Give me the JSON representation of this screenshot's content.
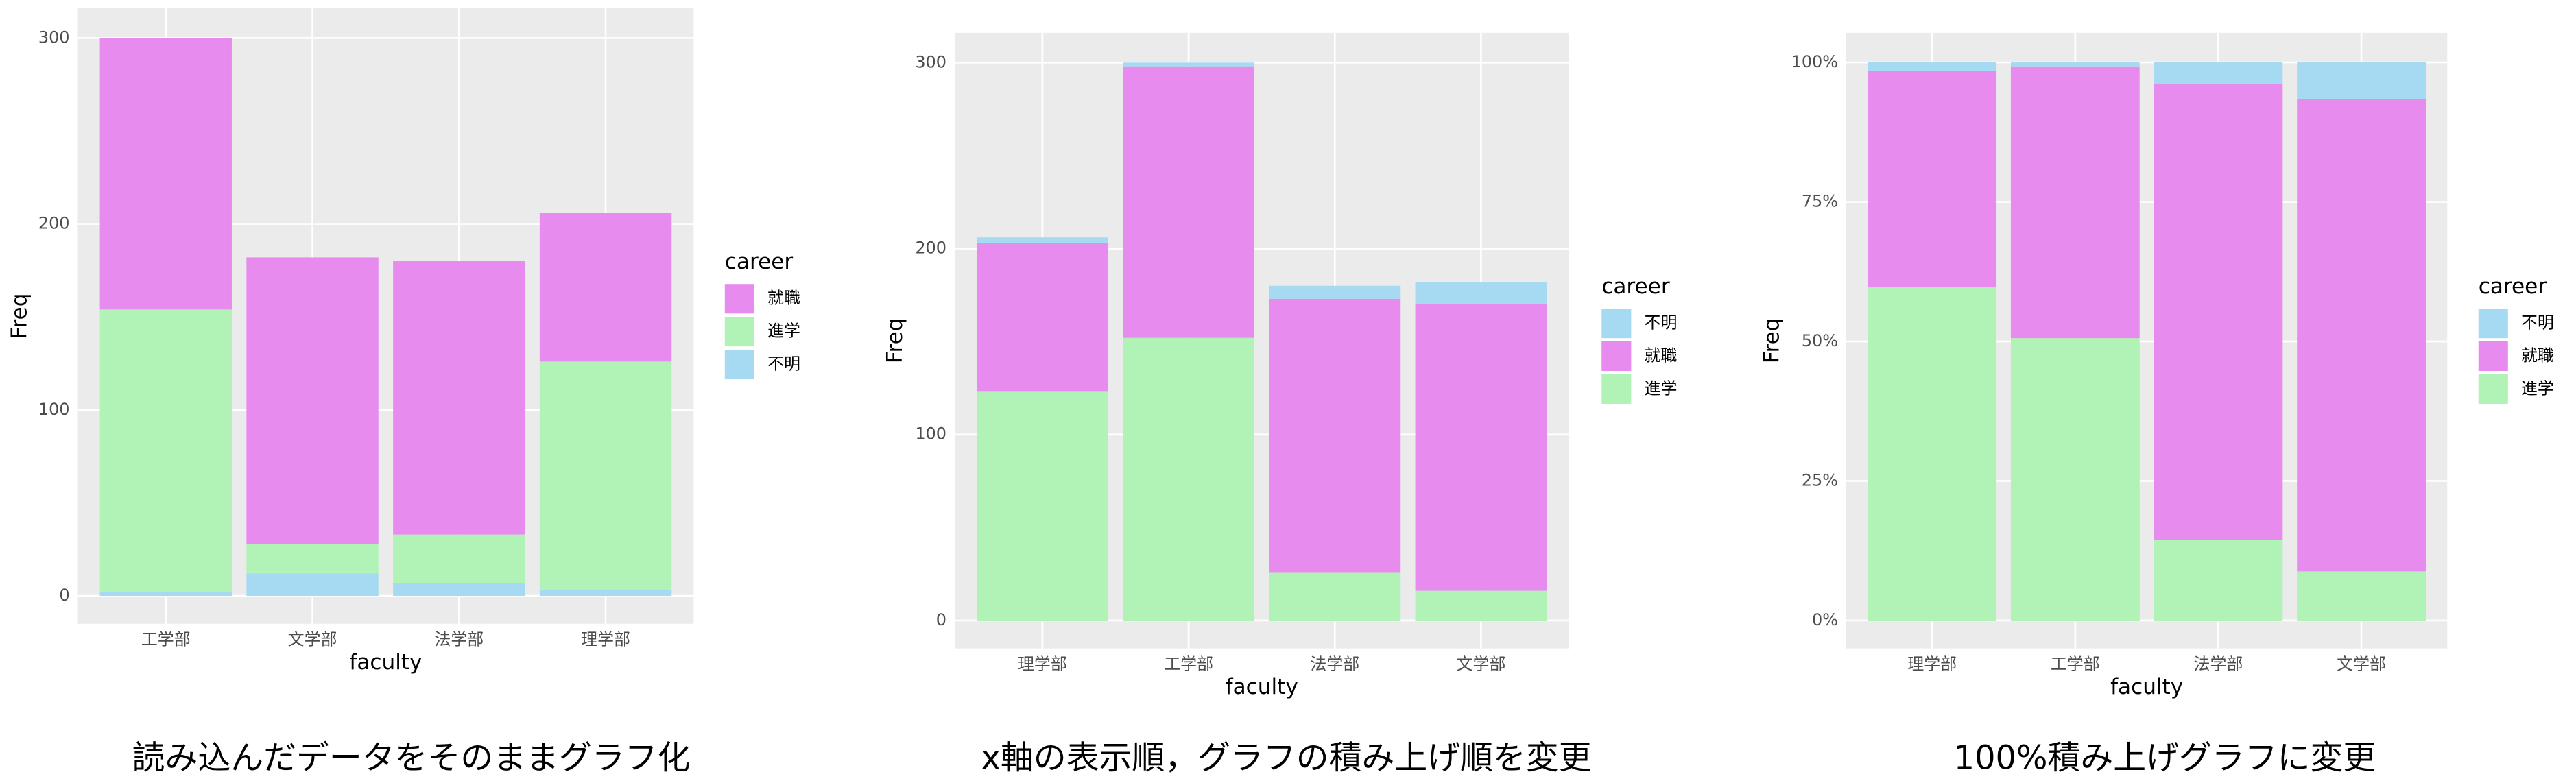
{
  "chart_data": [
    {
      "type": "bar",
      "stacked": true,
      "grid": true,
      "xlabel": "faculty",
      "ylabel": "Freq",
      "legend_title": "career",
      "caption": "読み込んだデータをそのままグラフ化",
      "categories": [
        "工学部",
        "文学部",
        "法学部",
        "理学部"
      ],
      "series": [
        {
          "name": "就職",
          "color": "#e88bef",
          "values": [
            146,
            154,
            147,
            80
          ]
        },
        {
          "name": "進学",
          "color": "#b1f2b6",
          "values": [
            152,
            16,
            26,
            123
          ]
        },
        {
          "name": "不明",
          "color": "#a6d9f2",
          "values": [
            2,
            12,
            7,
            3
          ]
        }
      ],
      "ylim": [
        -15,
        316
      ],
      "yticks": [
        0,
        100,
        200,
        300
      ]
    },
    {
      "type": "bar",
      "stacked": true,
      "grid": true,
      "xlabel": "faculty",
      "ylabel": "Freq",
      "legend_title": "career",
      "caption": "x軸の表示順，グラフの積み上げ順を変更",
      "categories": [
        "理学部",
        "工学部",
        "法学部",
        "文学部"
      ],
      "series": [
        {
          "name": "不明",
          "color": "#a6d9f2",
          "values": [
            3,
            2,
            7,
            12
          ]
        },
        {
          "name": "就職",
          "color": "#e88bef",
          "values": [
            80,
            146,
            147,
            154
          ]
        },
        {
          "name": "進学",
          "color": "#b1f2b6",
          "values": [
            123,
            152,
            26,
            16
          ]
        }
      ],
      "ylim": [
        -15,
        316
      ],
      "yticks": [
        0,
        100,
        200,
        300
      ]
    },
    {
      "type": "bar",
      "stacked": true,
      "grid": true,
      "xlabel": "faculty",
      "ylabel": "Freq",
      "legend_title": "career",
      "caption": "100%積み上げグラフに変更",
      "categories": [
        "理学部",
        "工学部",
        "法学部",
        "文学部"
      ],
      "series": [
        {
          "name": "不明",
          "color": "#a6d9f2",
          "values": [
            1.5,
            0.7,
            3.9,
            6.6
          ]
        },
        {
          "name": "就職",
          "color": "#e88bef",
          "values": [
            38.8,
            48.7,
            81.7,
            84.6
          ]
        },
        {
          "name": "進学",
          "color": "#b1f2b6",
          "values": [
            59.7,
            50.6,
            14.4,
            8.8
          ]
        }
      ],
      "ylim": [
        -5,
        105.3
      ],
      "yticks": [
        {
          "value": 0,
          "label": "0%"
        },
        {
          "value": 25,
          "label": "25%"
        },
        {
          "value": 50,
          "label": "50%"
        },
        {
          "value": 75,
          "label": "75%"
        },
        {
          "value": 100,
          "label": "100%"
        }
      ]
    }
  ]
}
